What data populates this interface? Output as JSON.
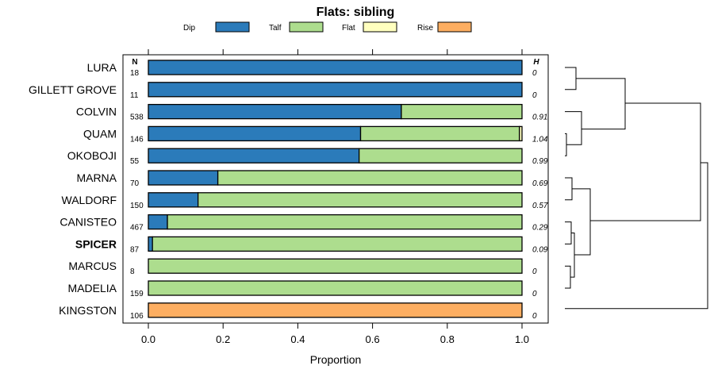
{
  "chart_data": {
    "type": "bar",
    "orientation": "horizontal",
    "stacked": true,
    "title": "Flats: sibling",
    "xlabel": "Proportion",
    "ylabel": "",
    "xlim": [
      0,
      1
    ],
    "xticks": [
      "0.0",
      "0.2",
      "0.4",
      "0.6",
      "0.8",
      "1.0"
    ],
    "n_header": "N",
    "h_header": "H",
    "legend": [
      {
        "name": "Dip",
        "color": "#2b7bba"
      },
      {
        "name": "Talf",
        "color": "#addd8e"
      },
      {
        "name": "Flat",
        "color": "#ffffbf"
      },
      {
        "name": "Rise",
        "color": "#fdae61"
      }
    ],
    "categories": [
      "LURA",
      "GILLETT GROVE",
      "COLVIN",
      "QUAM",
      "OKOBOJI",
      "MARNA",
      "WALDORF",
      "CANISTEO",
      "SPICER",
      "MARCUS",
      "MADELIA",
      "KINGSTON"
    ],
    "bold_categories": [
      "SPICER"
    ],
    "n": [
      "18",
      "11",
      "538",
      "146",
      "55",
      "70",
      "150",
      "467",
      "87",
      "8",
      "159",
      "106"
    ],
    "h": [
      "0",
      "0",
      "0.91",
      "1.04",
      "0.99",
      "0.69",
      "0.57",
      "0.29",
      "0.09",
      "0",
      "0",
      "0"
    ],
    "series": [
      {
        "name": "Dip",
        "values": [
          1.0,
          1.0,
          0.677,
          0.568,
          0.564,
          0.186,
          0.133,
          0.051,
          0.011,
          0.0,
          0.0,
          0.0
        ]
      },
      {
        "name": "Talf",
        "values": [
          0.0,
          0.0,
          0.323,
          0.425,
          0.436,
          0.814,
          0.867,
          0.949,
          0.989,
          1.0,
          1.0,
          0.0
        ]
      },
      {
        "name": "Flat",
        "values": [
          0.0,
          0.0,
          0.0,
          0.007,
          0.0,
          0.0,
          0.0,
          0.0,
          0.0,
          0.0,
          0.0,
          0.0
        ]
      },
      {
        "name": "Rise",
        "values": [
          0.0,
          0.0,
          0.0,
          0.0,
          0.0,
          0.0,
          0.0,
          0.0,
          0.0,
          0.0,
          0.0,
          1.0
        ]
      }
    ]
  }
}
